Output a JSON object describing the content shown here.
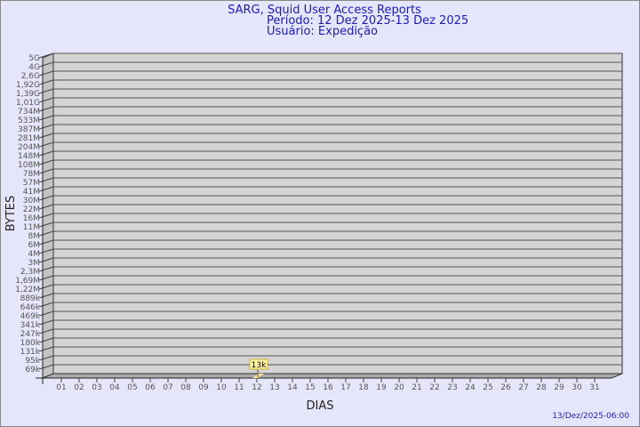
{
  "chart_data": {
    "type": "bar",
    "title": [
      "SARG, Squid User Access Reports",
      "Período: 12 Dez 2025-13 Dez 2025",
      "Usuário: Expedição"
    ],
    "xlabel": "DIAS",
    "ylabel": "BYTES",
    "yscale": "log",
    "y_ticks": [
      "5G",
      "4G",
      "2,6G",
      "1,92G",
      "1,39G",
      "1,01G",
      "734M",
      "533M",
      "387M",
      "281M",
      "204M",
      "148M",
      "108M",
      "78M",
      "57M",
      "41M",
      "30M",
      "22M",
      "16M",
      "11M",
      "8M",
      "6M",
      "4M",
      "3M",
      "2,3M",
      "1,69M",
      "1,22M",
      "889k",
      "646k",
      "469k",
      "341k",
      "247k",
      "180k",
      "131k",
      "95k",
      "69k"
    ],
    "categories": [
      "01",
      "02",
      "03",
      "04",
      "05",
      "06",
      "07",
      "08",
      "09",
      "10",
      "11",
      "12",
      "13",
      "14",
      "15",
      "16",
      "17",
      "18",
      "19",
      "20",
      "21",
      "22",
      "23",
      "24",
      "25",
      "26",
      "27",
      "28",
      "29",
      "30",
      "31"
    ],
    "points": [
      {
        "day": "12",
        "value": 13000,
        "label": "13k"
      }
    ],
    "bar_color": "#ffe58a",
    "grid": true
  },
  "footer": {
    "timestamp": "13/Dez/2025-06:00"
  }
}
